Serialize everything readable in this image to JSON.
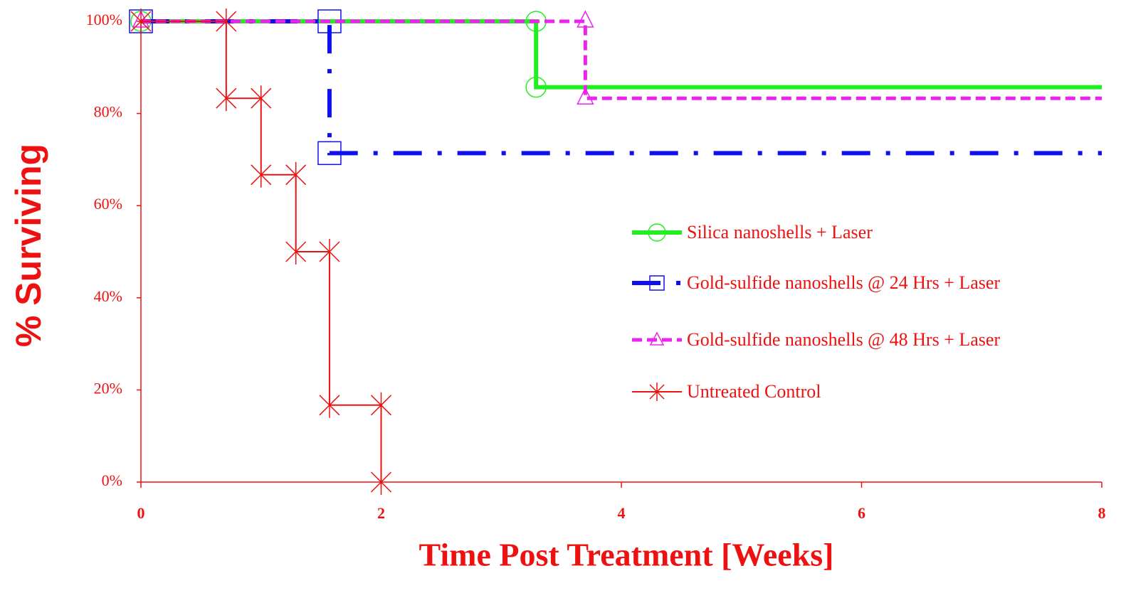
{
  "chart_data": {
    "type": "step",
    "xlabel": "Time Post Treatment [Weeks]",
    "ylabel": "% Surviving",
    "xlim": [
      0,
      8
    ],
    "xticks": [
      0,
      2,
      4,
      6,
      8
    ],
    "ylim": [
      0,
      100
    ],
    "yticks": [
      {
        "value": 0,
        "label": "0%"
      },
      {
        "value": 20,
        "label": "20%"
      },
      {
        "value": 40,
        "label": "40%"
      },
      {
        "value": 60,
        "label": "60%"
      },
      {
        "value": 80,
        "label": "80%"
      },
      {
        "value": 100,
        "label": "100%"
      }
    ],
    "grid": false,
    "legend": "right",
    "series": [
      {
        "name": "Silica nanoshells + Laser",
        "color": "#22ee22",
        "marker": "circle",
        "dash": "solid",
        "x": [
          0,
          3.29,
          3.29
        ],
        "values": [
          100,
          100,
          85.7
        ]
      },
      {
        "name": "Gold-sulfide nanoshells @ 24 Hrs + Laser",
        "color": "#1010ee",
        "marker": "square",
        "dash": "dashdot",
        "x": [
          0,
          1.57,
          1.57
        ],
        "values": [
          100,
          100,
          71.4
        ]
      },
      {
        "name": "Gold-sulfide nanoshells @ 48 Hrs + Laser",
        "color": "#ee22ee",
        "marker": "triangle",
        "dash": "dashed",
        "x": [
          0,
          3.7,
          3.7
        ],
        "values": [
          100,
          100,
          83.3
        ]
      },
      {
        "name": "Untreated Control",
        "color": "#ee1111",
        "marker": "star",
        "dash": "solid",
        "x": [
          0,
          0.71,
          0.71,
          1,
          1,
          1.29,
          1.29,
          1.57,
          1.57,
          2,
          2
        ],
        "values": [
          100,
          100,
          83.3,
          83.3,
          66.7,
          66.7,
          50,
          50,
          16.7,
          16.7,
          0
        ]
      }
    ]
  }
}
